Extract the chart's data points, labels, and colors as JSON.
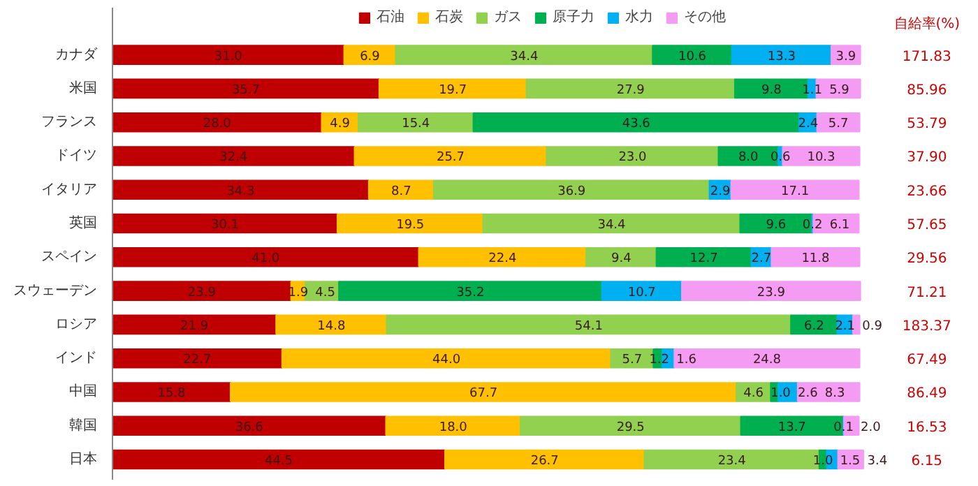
{
  "chart_data": {
    "type": "bar",
    "orientation": "horizontal",
    "stacked": true,
    "legend": "top",
    "grid": false,
    "tick_labels": "y",
    "categories": [
      "カナダ",
      "米国",
      "フランス",
      "ドイツ",
      "イタリア",
      "英国",
      "スペイン",
      "スウェーデン",
      "ロシア",
      "インド",
      "中国",
      "韓国",
      "日本"
    ],
    "series": [
      {
        "name": "石油",
        "color": "#c00000",
        "values": [
          31.0,
          35.7,
          28.0,
          32.4,
          34.3,
          30.1,
          41.0,
          23.9,
          21.9,
          22.7,
          15.8,
          36.6,
          44.5
        ],
        "value_labels": [
          "31.0",
          "35.7",
          "28.0",
          "32.4",
          "34.3",
          "30.1",
          "41.0",
          "23.9",
          "21.9",
          "22.7",
          "15.8",
          "36.6",
          "44.5"
        ]
      },
      {
        "name": "石炭",
        "color": "#ffc000",
        "values": [
          6.9,
          19.7,
          4.9,
          25.7,
          8.7,
          19.5,
          22.4,
          1.9,
          14.8,
          44.0,
          67.7,
          18.0,
          26.7
        ],
        "value_labels": [
          "6.9",
          "19.7",
          "4.9",
          "25.7",
          "8.7",
          "19.5",
          "22.4",
          "1.9",
          "14.8",
          "44.0",
          "67.7",
          "18.0",
          "26.7"
        ]
      },
      {
        "name": "ガス",
        "color": "#92d050",
        "values": [
          34.4,
          27.9,
          15.4,
          23.0,
          36.9,
          34.4,
          9.4,
          4.5,
          54.1,
          5.7,
          4.6,
          29.5,
          23.4
        ],
        "value_labels": [
          "34.4",
          "27.9",
          "15.4",
          "23.0",
          "36.9",
          "34.4",
          "9.4",
          "4.5",
          "54.1",
          "5.7",
          "4.6",
          "29.5",
          "23.4"
        ]
      },
      {
        "name": "原子力",
        "color": "#00b050",
        "values": [
          10.6,
          9.8,
          43.6,
          8.0,
          null,
          9.6,
          12.7,
          35.2,
          6.2,
          1.2,
          1.0,
          13.7,
          1.0
        ],
        "value_labels": [
          "10.6",
          "9.8",
          "43.6",
          "8.0",
          null,
          "9.6",
          "12.7",
          "35.2",
          "6.2",
          "1.2",
          "1.0",
          "13.7",
          "1.0"
        ]
      },
      {
        "name": "水力",
        "color": "#00b0f0",
        "values": [
          13.3,
          1.1,
          2.4,
          0.6,
          2.9,
          0.2,
          2.7,
          10.7,
          2.1,
          1.6,
          2.6,
          0.1,
          1.5
        ],
        "value_labels": [
          "13.3",
          "1.1",
          "2.4",
          "0.6",
          "2.9",
          "0.2",
          "2.7",
          "10.7",
          "2.1",
          "1.6",
          "2.6",
          "0.1",
          "1.5"
        ]
      },
      {
        "name": "その他",
        "color": "#f49cf4",
        "values": [
          3.9,
          5.9,
          5.7,
          10.3,
          17.1,
          6.1,
          11.8,
          23.9,
          0.9,
          24.8,
          8.3,
          2.0,
          3.4
        ],
        "value_labels": [
          "3.9",
          "5.9",
          "5.7",
          "10.3",
          "17.1",
          "6.1",
          "11.8",
          "23.9",
          "0.9",
          "24.8",
          "8.3",
          "2.0",
          "3.4"
        ]
      }
    ],
    "annotations": [
      "自給率(%)",
      "171.83",
      "85.96",
      "53.79",
      "37.90",
      "23.66",
      "57.65",
      "29.56",
      "71.21",
      "183.37",
      "67.49",
      "86.49",
      "16.53",
      "6.15"
    ]
  }
}
